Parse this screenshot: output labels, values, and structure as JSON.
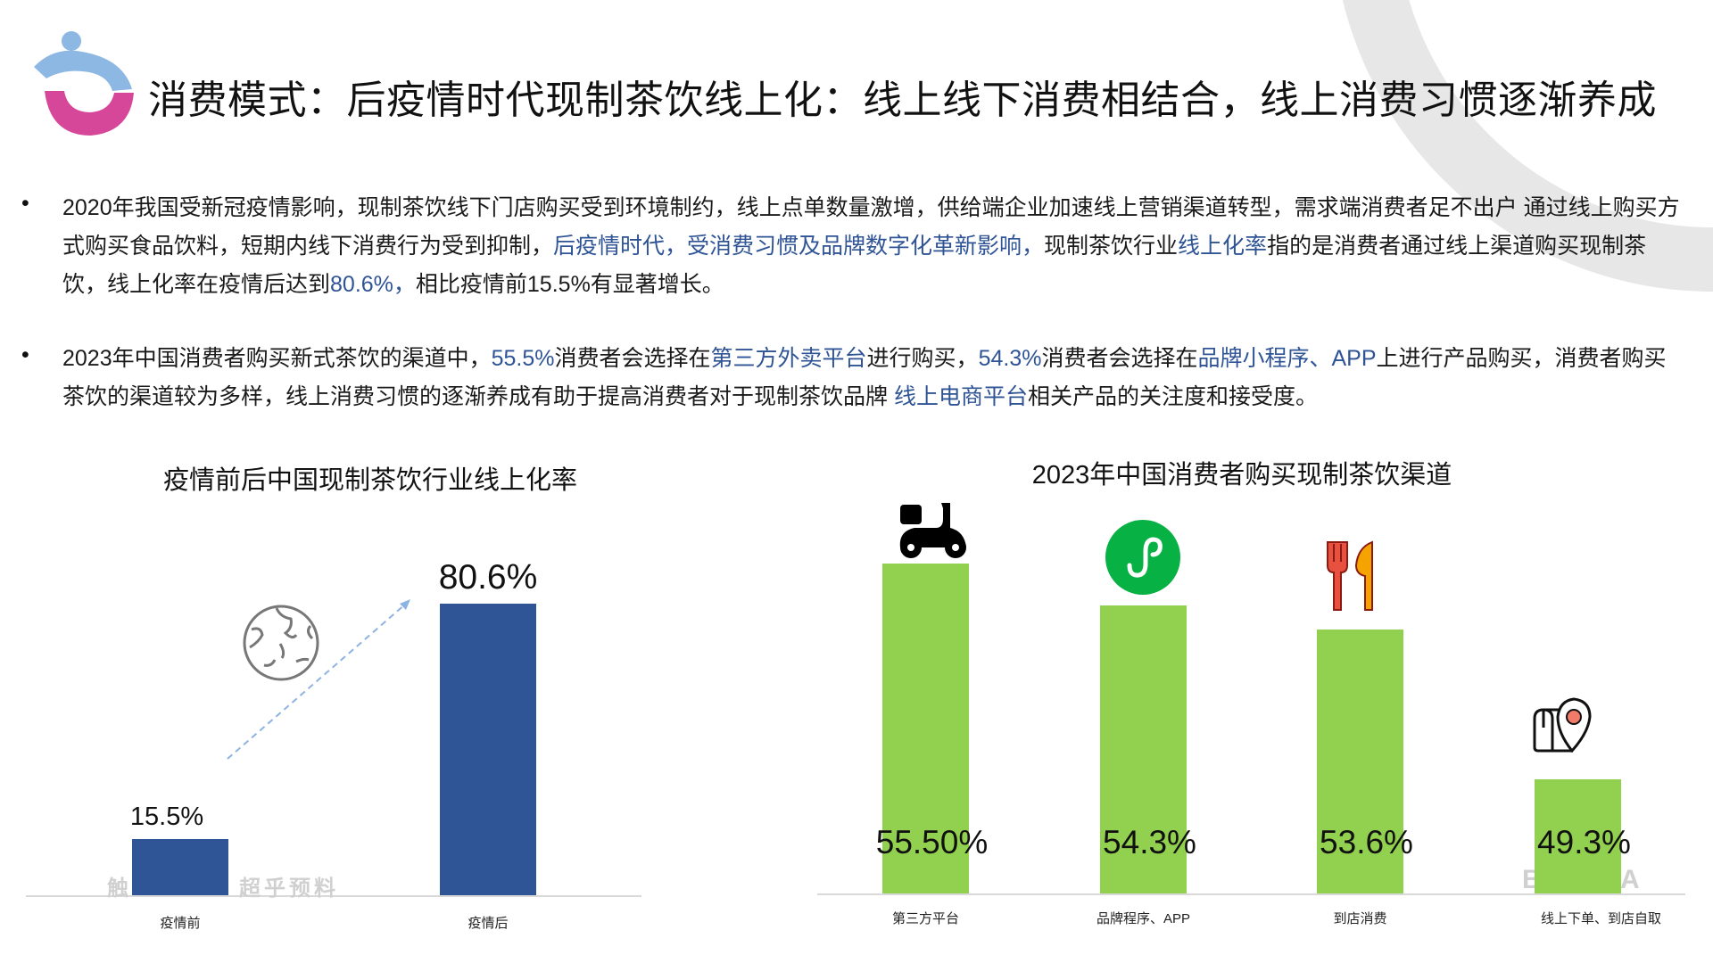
{
  "header": {
    "title": "消费模式：后疫情时代现制茶饮线上化：线上线下消费相结合，线上消费习惯逐渐养成"
  },
  "bullets": [
    {
      "segments": [
        {
          "text": "2020年我国受新冠疫情影响，现制茶饮线下门店购买受到环境制约，线上点单数量激增，供给端企业加速线上营销渠道转型，需求端消费者足不出户 通过线上购买方式购买食品饮料，短期内线下消费行为受到抑制，",
          "hl": false
        },
        {
          "text": "后疫情时代，受消费习惯及品牌数字化革新影响，",
          "hl": true
        },
        {
          "text": "现制茶饮行业",
          "hl": false
        },
        {
          "text": "线上化率",
          "hl": true
        },
        {
          "text": "指的是消费者通过线上渠道购买现制茶饮，线上化率在疫情后达到",
          "hl": false
        },
        {
          "text": "80.6%，",
          "hl": true
        },
        {
          "text": "相比疫情前15.5%有显著增长。",
          "hl": false
        }
      ]
    },
    {
      "segments": [
        {
          "text": "2023年中国消费者购买新式茶饮的渠道中，",
          "hl": false
        },
        {
          "text": "55.5%",
          "hl": true
        },
        {
          "text": "消费者会选择在",
          "hl": false
        },
        {
          "text": "第三方外卖平台",
          "hl": true
        },
        {
          "text": "进行购买，",
          "hl": false
        },
        {
          "text": "54.3%",
          "hl": true
        },
        {
          "text": "消费者会选择在",
          "hl": false
        },
        {
          "text": "品牌小程序、APP",
          "hl": true
        },
        {
          "text": "上进行产品购买，消费者购买茶饮的渠道较为多样，线上消费习惯的逐渐养成有助于提高消费者对于现制茶饮品牌 ",
          "hl": false
        },
        {
          "text": "线上电商平台",
          "hl": true
        },
        {
          "text": "相关产品的关注度和接受度。",
          "hl": false
        }
      ]
    }
  ],
  "watermarks": {
    "left_a": "触",
    "left_b": "超乎预料",
    "right_a": "B",
    "right_b": "A"
  },
  "colors": {
    "highlight": "#2f5496",
    "blue_bar": "#2f5597",
    "green_bar": "#92d050",
    "ring": "#e7e7e7",
    "logo_blue": "#8db8e3",
    "logo_pink": "#d6479a"
  },
  "chart_data": [
    {
      "type": "bar",
      "title": "疫情前后中国现制茶饮行业线上化率",
      "categories": [
        "疫情前",
        "疫情后"
      ],
      "values": [
        15.5,
        80.6
      ],
      "labels": [
        "15.5%",
        "80.6%"
      ],
      "ylim": [
        0,
        100
      ],
      "grid": false
    },
    {
      "type": "bar",
      "title": "2023年中国消费者购买现制茶饮渠道",
      "categories": [
        "第三方平台",
        "品牌程序、APP",
        "到店消费",
        "线上下单、到店自取"
      ],
      "values": [
        55.5,
        54.3,
        53.6,
        49.3
      ],
      "labels": [
        "55.50%",
        "54.3%",
        "53.6%",
        "49.3%"
      ],
      "icons": [
        "delivery-scooter-icon",
        "mini-program-icon",
        "fork-knife-icon",
        "map-pin-icon"
      ],
      "ylim": [
        46,
        60
      ],
      "grid": false
    }
  ]
}
